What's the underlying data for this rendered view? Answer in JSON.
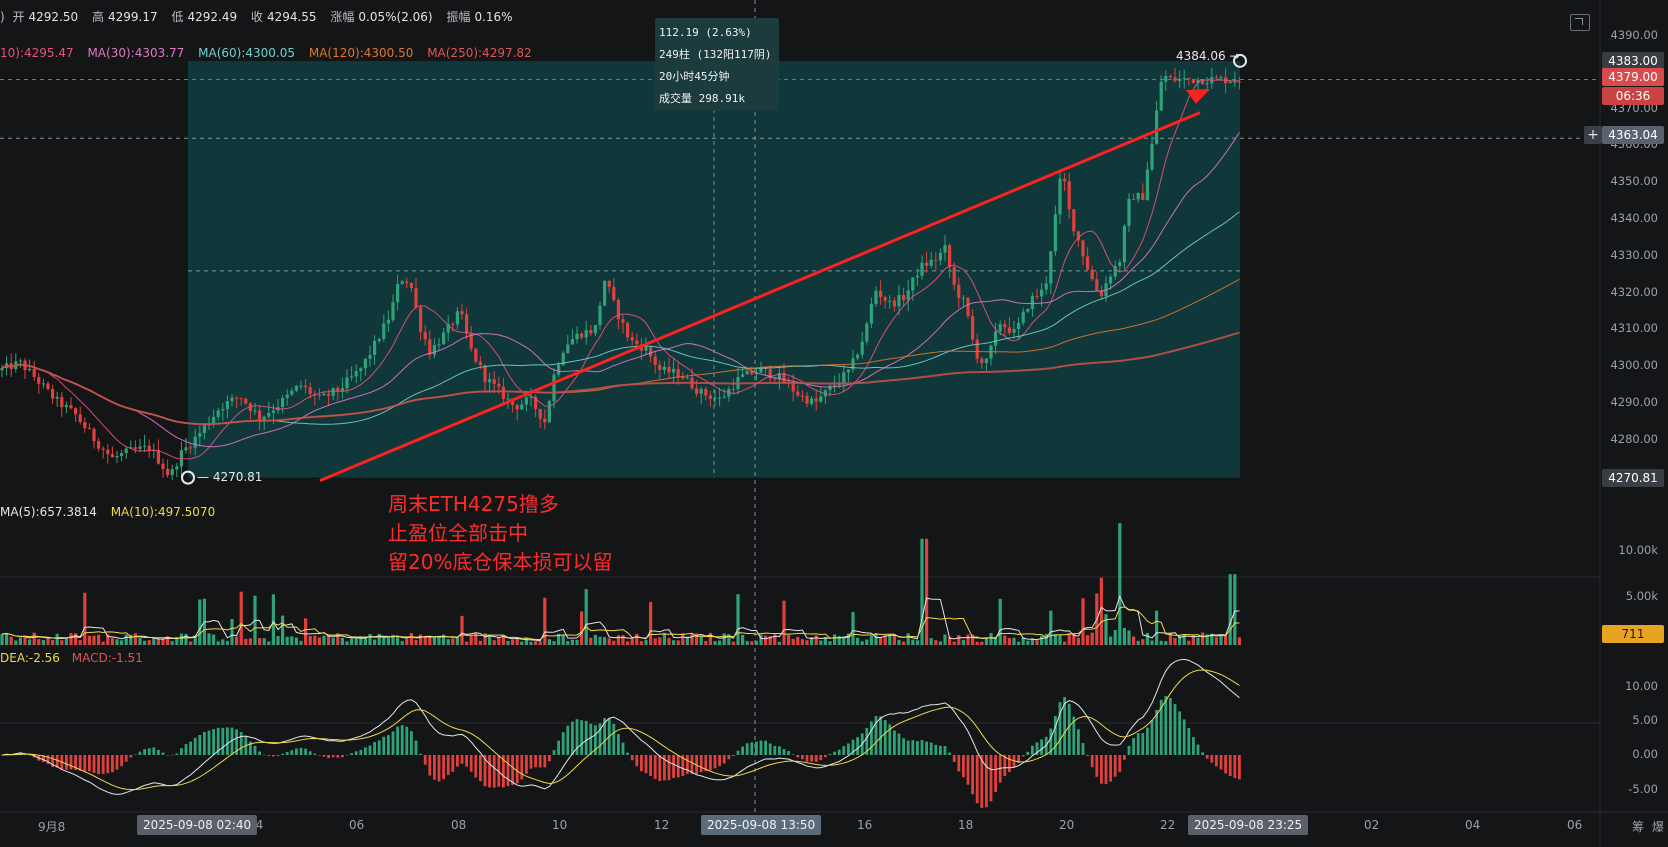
{
  "header": {
    "open_label": "开",
    "open": "4292.50",
    "high_label": "高",
    "high": "4299.17",
    "low_label": "低",
    "low": "4292.49",
    "close_label": "收",
    "close": "4294.55",
    "change_label": "涨幅",
    "change": "0.05%(2.06)",
    "amplitude_label": "振幅",
    "amplitude": "0.16%"
  },
  "ma_legend": [
    {
      "text": "10):4295.47",
      "color": "#e8527a"
    },
    {
      "text": "MA(30):4303.77",
      "color": "#e077c4"
    },
    {
      "text": "MA(60):4300.05",
      "color": "#6fd0cf"
    },
    {
      "text": "MA(120):4300.50",
      "color": "#e0762d"
    },
    {
      "text": "MA(250):4297.82",
      "color": "#e05555"
    }
  ],
  "vol_legend": [
    {
      "text": "MA(5):657.3814",
      "color": "#e6e6e6"
    },
    {
      "text": "MA(10):497.5070",
      "color": "#f0d84a"
    }
  ],
  "macd_legend": [
    {
      "text": "DEA:-2.56",
      "color": "#f0d84a"
    },
    {
      "text": "MACD:-1.51",
      "color": "#e05555"
    }
  ],
  "price_axis": [
    "4390.00",
    "4380.00",
    "4370.00",
    "4360.00",
    "4350.00",
    "4340.00",
    "4330.00",
    "4320.00",
    "4310.00",
    "4300.00",
    "4290.00",
    "4280.00"
  ],
  "price_tags": {
    "high_line": "4383.00",
    "current": "4379.00",
    "countdown": "06:36",
    "crosshair": "4363.04",
    "low_line": "4270.81"
  },
  "volume_axis": [
    "10.00k",
    "5.00k"
  ],
  "volume_tag": "711",
  "macd_axis": [
    "10.00",
    "5.00",
    "0.00",
    "-5.00"
  ],
  "tooltip": [
    "112.19 (2.63%)",
    "249柱 (132阳117阴)",
    "20小时45分钟",
    "成交量 298.91k"
  ],
  "peak_label": "4384.06 →",
  "low_label": "— 4270.81",
  "annotation": [
    "周末ETH4275撸多",
    "止盈位全部击中",
    "留20%底仓保本损可以留"
  ],
  "x_axis": [
    "9月8",
    "04",
    "06",
    "08",
    "10",
    "12",
    "16",
    "18",
    "20",
    "22",
    "02",
    "04",
    "06"
  ],
  "x_boxes": [
    "2025-09-08 02:40",
    "2025-09-08 13:50",
    "2025-09-08 23:25"
  ],
  "corner_labels": [
    "筹",
    "爆"
  ],
  "colors": {
    "up": "#2ea37a",
    "down": "#e0413c",
    "box": "#0f3d40",
    "arrow": "#ff2020",
    "background": "#141517"
  },
  "chart_data": {
    "type": "candlestick",
    "ylim": [
      4265,
      4395
    ],
    "anchors": [
      [
        0,
        4300
      ],
      [
        20,
        4302
      ],
      [
        35,
        4298
      ],
      [
        55,
        4292
      ],
      [
        75,
        4288
      ],
      [
        95,
        4281
      ],
      [
        112,
        4276
      ],
      [
        130,
        4278
      ],
      [
        150,
        4279
      ],
      [
        170,
        4271
      ],
      [
        180,
        4277
      ],
      [
        200,
        4283
      ],
      [
        220,
        4290
      ],
      [
        240,
        4293
      ],
      [
        260,
        4287
      ],
      [
        280,
        4291
      ],
      [
        300,
        4296
      ],
      [
        320,
        4292
      ],
      [
        340,
        4295
      ],
      [
        360,
        4300
      ],
      [
        375,
        4307
      ],
      [
        390,
        4315
      ],
      [
        400,
        4325
      ],
      [
        410,
        4324
      ],
      [
        420,
        4312
      ],
      [
        430,
        4305
      ],
      [
        445,
        4310
      ],
      [
        460,
        4316
      ],
      [
        470,
        4306
      ],
      [
        485,
        4298
      ],
      [
        500,
        4294
      ],
      [
        515,
        4290
      ],
      [
        530,
        4292
      ],
      [
        545,
        4286
      ],
      [
        555,
        4300
      ],
      [
        565,
        4307
      ],
      [
        580,
        4310
      ],
      [
        595,
        4311
      ],
      [
        605,
        4325
      ],
      [
        615,
        4317
      ],
      [
        630,
        4308
      ],
      [
        645,
        4306
      ],
      [
        660,
        4300
      ],
      [
        680,
        4299
      ],
      [
        700,
        4294
      ],
      [
        720,
        4292
      ],
      [
        740,
        4298
      ],
      [
        760,
        4300
      ],
      [
        780,
        4298
      ],
      [
        800,
        4293
      ],
      [
        815,
        4291
      ],
      [
        830,
        4295
      ],
      [
        850,
        4300
      ],
      [
        865,
        4310
      ],
      [
        875,
        4322
      ],
      [
        890,
        4318
      ],
      [
        905,
        4320
      ],
      [
        920,
        4328
      ],
      [
        935,
        4330
      ],
      [
        945,
        4333
      ],
      [
        955,
        4322
      ],
      [
        965,
        4318
      ],
      [
        975,
        4305
      ],
      [
        985,
        4301
      ],
      [
        1000,
        4313
      ],
      [
        1015,
        4310
      ],
      [
        1030,
        4319
      ],
      [
        1045,
        4322
      ],
      [
        1055,
        4341
      ],
      [
        1062,
        4355
      ],
      [
        1070,
        4342
      ],
      [
        1080,
        4334
      ],
      [
        1090,
        4326
      ],
      [
        1100,
        4320
      ],
      [
        1110,
        4326
      ],
      [
        1120,
        4330
      ],
      [
        1128,
        4345
      ],
      [
        1135,
        4348
      ],
      [
        1142,
        4346
      ],
      [
        1148,
        4356
      ],
      [
        1154,
        4364
      ],
      [
        1160,
        4378
      ],
      [
        1165,
        4380
      ],
      [
        1168,
        4379
      ]
    ],
    "ma_lines": [
      "MA(10)",
      "MA(30)",
      "MA(60)",
      "MA(120)",
      "MA(250)"
    ],
    "volume_range": [
      0,
      12000
    ],
    "macd_range": [
      -7,
      14
    ]
  }
}
